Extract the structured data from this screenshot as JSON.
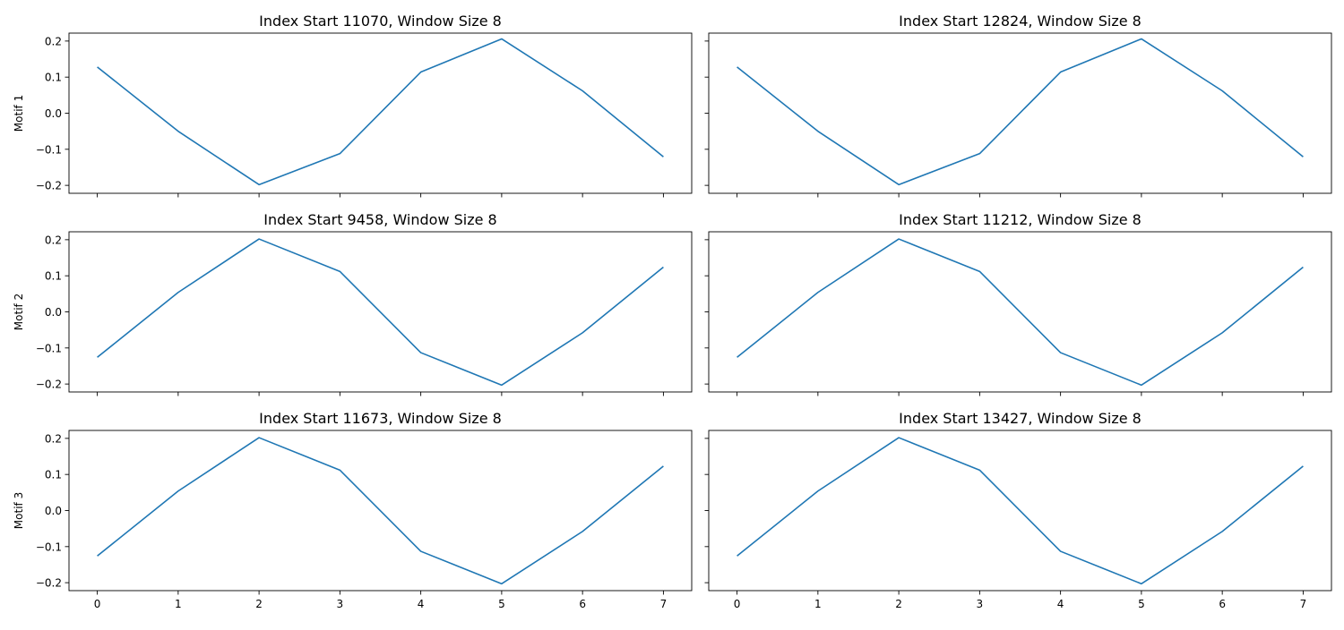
{
  "chart_data": {
    "type": "line",
    "layout": {
      "rows": 3,
      "cols": 2,
      "sharex": true,
      "sharey": true
    },
    "x": [
      0,
      1,
      2,
      3,
      4,
      5,
      6,
      7
    ],
    "xticks": [
      "0",
      "1",
      "2",
      "3",
      "4",
      "5",
      "6",
      "7"
    ],
    "xlim": [
      -0.35,
      7.35
    ],
    "ylim": [
      -0.222,
      0.222
    ],
    "yticks": [
      "0.2",
      "0.1",
      "0.0",
      "−0.1",
      "−0.2"
    ],
    "ytick_values": [
      0.2,
      0.1,
      0.0,
      -0.1,
      -0.2
    ],
    "grid": false,
    "line_color": "#1f77b4",
    "rows": [
      {
        "label": "Motif 1",
        "panels": [
          {
            "title": "Index Start 11070, Window Size 8",
            "values": [
              0.128,
              -0.05,
              -0.198,
              -0.112,
              0.114,
              0.206,
              0.062,
              -0.121
            ]
          },
          {
            "title": "Index Start 12824, Window Size 8",
            "values": [
              0.128,
              -0.05,
              -0.198,
              -0.112,
              0.114,
              0.206,
              0.062,
              -0.121
            ]
          }
        ]
      },
      {
        "label": "Motif 2",
        "panels": [
          {
            "title": "Index Start 9458, Window Size 8",
            "values": [
              -0.126,
              0.054,
              0.202,
              0.112,
              -0.113,
              -0.203,
              -0.058,
              0.124
            ]
          },
          {
            "title": "Index Start 11212, Window Size 8",
            "values": [
              -0.126,
              0.054,
              0.202,
              0.112,
              -0.113,
              -0.203,
              -0.058,
              0.124
            ]
          }
        ]
      },
      {
        "label": "Motif 3",
        "panels": [
          {
            "title": "Index Start 11673, Window Size 8",
            "values": [
              -0.126,
              0.054,
              0.202,
              0.112,
              -0.113,
              -0.203,
              -0.058,
              0.123
            ]
          },
          {
            "title": "Index Start 13427, Window Size 8",
            "values": [
              -0.126,
              0.054,
              0.202,
              0.112,
              -0.113,
              -0.203,
              -0.058,
              0.123
            ]
          }
        ]
      }
    ]
  }
}
